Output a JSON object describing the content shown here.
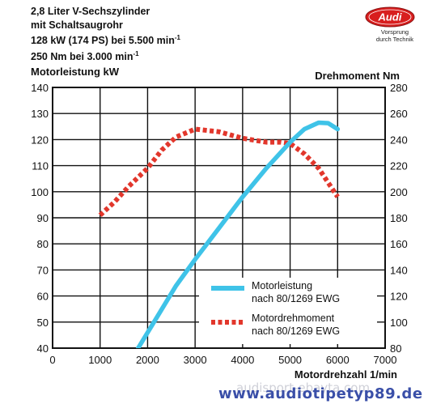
{
  "header": {
    "spec_lines": [
      "2,8 Liter V-Sechszylinder",
      "mit Schaltsaugrohr",
      "128 kW (174 PS) bei 5.500 min",
      "250 Nm bei 3.000 min"
    ],
    "spec_superscripts": [
      "",
      "",
      "-1",
      "-1"
    ],
    "brand": "Audi",
    "slogan_1": "Vorsprung",
    "slogan_2": "durch Technik"
  },
  "watermark": {
    "text": "www.audiotipetyp89.de",
    "ghost": "audisport-ebayta.com"
  },
  "colors": {
    "power": "#3fc3e8",
    "torque": "#e2372c",
    "logo": "#d81e1e"
  },
  "chart_data": {
    "type": "line",
    "xlabel": "Motordrehzahl 1/min",
    "ylabel": "Motorleistung kW",
    "y2label": "Drehmoment Nm",
    "xlim": [
      0,
      7000
    ],
    "ylim": [
      40,
      140
    ],
    "y2lim": [
      80,
      280
    ],
    "x_ticks": [
      "0",
      "1000",
      "2000",
      "3000",
      "4000",
      "5000",
      "6000",
      "7000"
    ],
    "y_ticks": [
      "40",
      "50",
      "60",
      "70",
      "80",
      "90",
      "100",
      "110",
      "120",
      "130",
      "140"
    ],
    "y2_ticks": [
      "80",
      "100",
      "120",
      "140",
      "160",
      "180",
      "200",
      "220",
      "240",
      "260",
      "280"
    ],
    "grid": true,
    "legend_position": "bottom-right",
    "series": [
      {
        "name_line1": "Motorleistung",
        "name_line2": "nach 80/1269 EWG",
        "axis": "left",
        "style": "solid",
        "points": [
          [
            1800,
            40
          ],
          [
            2200,
            52
          ],
          [
            2600,
            64
          ],
          [
            3000,
            74
          ],
          [
            3500,
            86
          ],
          [
            4000,
            98
          ],
          [
            4500,
            109
          ],
          [
            5000,
            119
          ],
          [
            5300,
            124
          ],
          [
            5600,
            126.5
          ],
          [
            5800,
            126.3
          ],
          [
            6000,
            124
          ]
        ]
      },
      {
        "name_line1": "Motordrehmoment",
        "name_line2": "nach 80/1269 EWG",
        "axis": "right",
        "style": "dotted",
        "points": [
          [
            1000,
            182
          ],
          [
            1300,
            192
          ],
          [
            1600,
            204
          ],
          [
            2000,
            218
          ],
          [
            2300,
            232
          ],
          [
            2600,
            242
          ],
          [
            3000,
            248
          ],
          [
            3500,
            246
          ],
          [
            4000,
            241
          ],
          [
            4500,
            238
          ],
          [
            4800,
            238
          ],
          [
            5000,
            237
          ],
          [
            5300,
            229
          ],
          [
            5600,
            218
          ],
          [
            6000,
            196
          ]
        ]
      }
    ]
  }
}
